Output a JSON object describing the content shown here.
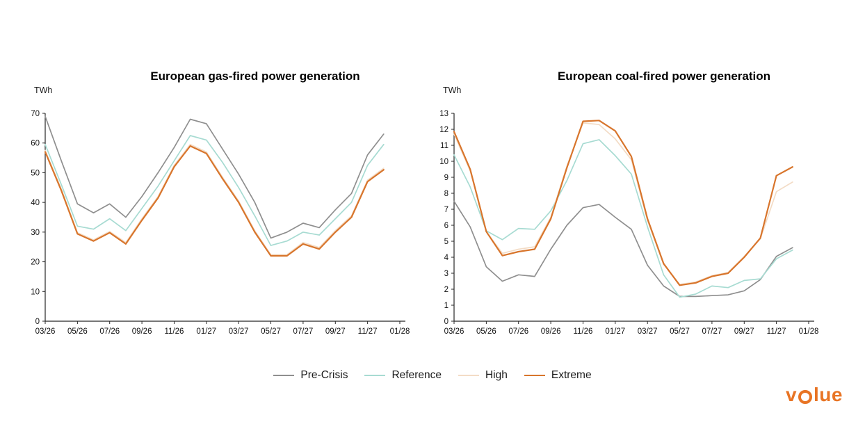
{
  "page": {
    "background": "#ffffff"
  },
  "chart_data": [
    {
      "type": "line",
      "title": "European gas-fired power generation",
      "y_axis_label": "TWh",
      "ylim": [
        0,
        70
      ],
      "y_tick_step": 10,
      "y_tick_labels": [
        "0",
        "10",
        "20",
        "30",
        "40",
        "50",
        "60",
        "70"
      ],
      "x_tick_labels": [
        "03/26",
        "05/26",
        "07/26",
        "09/26",
        "11/26",
        "01/27",
        "03/27",
        "05/27",
        "07/27",
        "09/27",
        "11/27",
        "01/28"
      ],
      "x_months": [
        "03/26",
        "04/26",
        "05/26",
        "06/26",
        "07/26",
        "08/26",
        "09/26",
        "10/26",
        "11/26",
        "12/26",
        "01/27",
        "02/27",
        "03/27",
        "04/27",
        "05/27",
        "06/27",
        "07/27",
        "08/27",
        "09/27",
        "10/27",
        "11/27",
        "12/27"
      ],
      "grid": false,
      "legend_position": "bottom",
      "series": [
        {
          "name": "Pre-Crisis",
          "color": "#8f8f8f",
          "width": 1.7,
          "values": [
            69,
            54,
            39.5,
            36.5,
            39.5,
            35,
            42,
            50,
            58.5,
            68,
            66.5,
            58,
            49.5,
            40,
            28,
            30,
            33,
            31.5,
            37.5,
            43,
            56,
            63
          ]
        },
        {
          "name": "Reference",
          "color": "#a7dbd2",
          "width": 1.7,
          "values": [
            59.5,
            46,
            32,
            31,
            34.5,
            30.5,
            38,
            45.5,
            54,
            62.5,
            61,
            53.5,
            45,
            35.5,
            25.5,
            27,
            30,
            29,
            34.5,
            40,
            52.5,
            59.5
          ]
        },
        {
          "name": "High",
          "color": "#f3dcc6",
          "width": 1.7,
          "values": [
            57.5,
            44.5,
            29.8,
            27.4,
            30.2,
            26.5,
            34.5,
            42,
            52.5,
            59.5,
            57,
            48.5,
            40.5,
            30.5,
            22.4,
            22.4,
            26.5,
            24.8,
            30.5,
            35.5,
            47.5,
            51.5
          ]
        },
        {
          "name": "Extreme",
          "color": "#d8752c",
          "width": 2.2,
          "values": [
            57,
            44,
            29.4,
            27,
            29.8,
            26,
            34,
            41.5,
            52,
            59,
            56.5,
            48,
            40,
            30,
            22,
            22,
            26,
            24.3,
            30,
            35,
            47,
            51
          ]
        }
      ]
    },
    {
      "type": "line",
      "title": "European coal-fired power generation",
      "y_axis_label": "TWh",
      "ylim": [
        0,
        13
      ],
      "y_tick_step": 1,
      "y_tick_labels": [
        "0",
        "1",
        "2",
        "3",
        "4",
        "5",
        "6",
        "7",
        "8",
        "9",
        "10",
        "11",
        "12",
        "13"
      ],
      "x_tick_labels": [
        "03/26",
        "05/26",
        "07/26",
        "09/26",
        "11/26",
        "01/27",
        "03/27",
        "05/27",
        "07/27",
        "09/27",
        "11/27",
        "01/28"
      ],
      "x_months": [
        "03/26",
        "04/26",
        "05/26",
        "06/26",
        "07/26",
        "08/26",
        "09/26",
        "10/26",
        "11/26",
        "12/26",
        "01/27",
        "02/27",
        "03/27",
        "04/27",
        "05/27",
        "06/27",
        "07/27",
        "08/27",
        "09/27",
        "10/27",
        "11/27",
        "12/27"
      ],
      "grid": false,
      "legend_position": "bottom",
      "series": [
        {
          "name": "Pre-Crisis",
          "color": "#8f8f8f",
          "width": 1.7,
          "values": [
            7.5,
            5.9,
            3.4,
            2.5,
            2.9,
            2.8,
            4.5,
            6.0,
            7.1,
            7.3,
            6.5,
            5.75,
            3.5,
            2.2,
            1.55,
            1.55,
            1.6,
            1.65,
            1.9,
            2.6,
            4.05,
            4.6
          ]
        },
        {
          "name": "Reference",
          "color": "#a7dbd2",
          "width": 1.7,
          "values": [
            10.4,
            8.4,
            5.65,
            5.1,
            5.8,
            5.75,
            6.9,
            8.8,
            11.1,
            11.35,
            10.35,
            9.2,
            5.9,
            2.9,
            1.5,
            1.7,
            2.2,
            2.1,
            2.55,
            2.65,
            3.9,
            4.45
          ]
        },
        {
          "name": "High",
          "color": "#f3dcc6",
          "width": 1.7,
          "values": [
            11.7,
            9.4,
            5.6,
            4.25,
            4.5,
            4.65,
            6.5,
            9.7,
            12.4,
            12.3,
            11.4,
            10.1,
            6.3,
            3.55,
            2.3,
            2.45,
            2.85,
            3.05,
            4.05,
            5.15,
            8.1,
            8.7
          ]
        },
        {
          "name": "Extreme",
          "color": "#d8752c",
          "width": 2.2,
          "values": [
            11.85,
            9.5,
            5.6,
            4.1,
            4.35,
            4.5,
            6.4,
            9.6,
            12.5,
            12.55,
            11.9,
            10.3,
            6.4,
            3.6,
            2.25,
            2.4,
            2.8,
            3.0,
            4.0,
            5.2,
            9.1,
            9.65
          ]
        }
      ]
    }
  ],
  "legend": {
    "items": [
      {
        "label": "Pre-Crisis",
        "color": "#8f8f8f"
      },
      {
        "label": "Reference",
        "color": "#a7dbd2"
      },
      {
        "label": "High",
        "color": "#f3dcc6"
      },
      {
        "label": "Extreme",
        "color": "#d8752c"
      }
    ]
  },
  "logo": {
    "part1": "v",
    "part2": "lue",
    "full_text": "volue",
    "color": "#e87424"
  },
  "style": {
    "axis_color": "#262626",
    "tick_label_color": "#111111",
    "title_color": "#000000"
  }
}
